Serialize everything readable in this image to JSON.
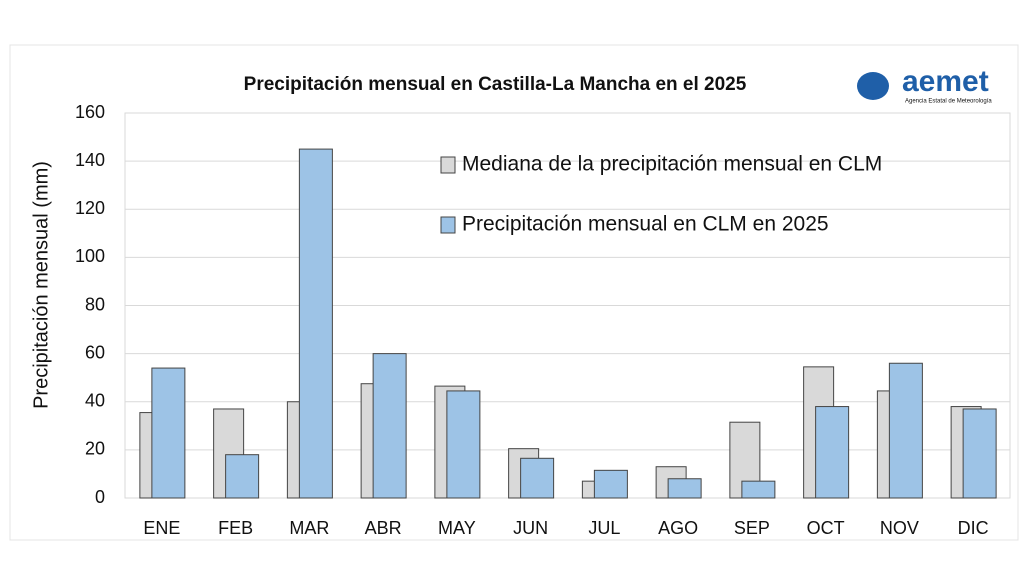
{
  "chart_data": {
    "type": "bar",
    "title": "Precipitación mensual en Castilla-La Mancha en el 2025",
    "y_label": "Precipitación mensual (mm)",
    "logo": {
      "name": "aemet",
      "subtitle": "Agencia Estatal de Meteorología"
    },
    "categories": [
      "ENE",
      "FEB",
      "MAR",
      "ABR",
      "MAY",
      "JUN",
      "JUL",
      "AGO",
      "SEP",
      "OCT",
      "NOV",
      "DIC"
    ],
    "series": [
      {
        "name": "Mediana de la precipitación mensual en CLM",
        "color": "#d9d9d9",
        "values": [
          35.5,
          37,
          40,
          47.5,
          46.5,
          20.5,
          7,
          13,
          31.5,
          54.5,
          44.5,
          38
        ]
      },
      {
        "name": "Precipitación mensual en CLM en 2025",
        "color": "#9dc3e6",
        "values": [
          54,
          18,
          145,
          60,
          44.5,
          16.5,
          11.5,
          8,
          7,
          38,
          56,
          37
        ]
      }
    ],
    "ylim": [
      0,
      160
    ],
    "yticks": [
      0,
      20,
      40,
      60,
      80,
      100,
      120,
      140,
      160
    ],
    "grid": true
  }
}
